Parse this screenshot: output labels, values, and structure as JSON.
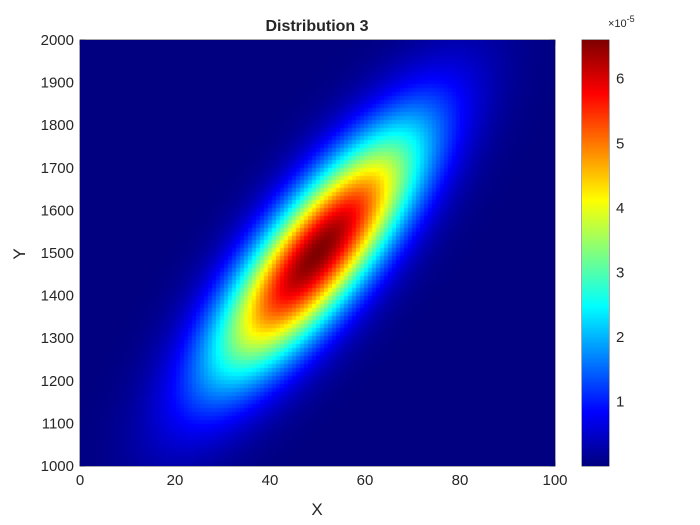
{
  "chart_data": {
    "type": "heatmap",
    "title": "Distribution 3",
    "xlabel": "X",
    "ylabel": "Y",
    "xlim": [
      0,
      100
    ],
    "ylim": [
      1000,
      2000
    ],
    "xticks": [
      0,
      20,
      40,
      60,
      80,
      100
    ],
    "yticks": [
      1000,
      1100,
      1200,
      1300,
      1400,
      1500,
      1600,
      1700,
      1800,
      1900,
      2000
    ],
    "colormap": "jet",
    "color_limits": [
      0,
      6.6e-05
    ],
    "colorbar": {
      "ticks": [
        1,
        2,
        3,
        4,
        5,
        6
      ],
      "tick_labels": [
        "1",
        "2",
        "3",
        "4",
        "5",
        "6"
      ],
      "multiplier": "×10",
      "exponent": "-5"
    },
    "distribution": {
      "kind": "bivariate-normal",
      "mean": [
        50,
        1500
      ],
      "std": [
        15,
        200
      ],
      "correlation": 0.8,
      "peak": 6.6e-05
    },
    "grid": false,
    "legend": "colorbar-right"
  }
}
